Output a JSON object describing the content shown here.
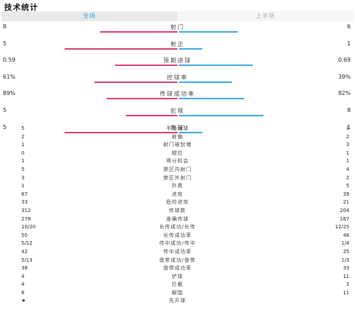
{
  "title": "技术统计",
  "tabs": [
    "全场",
    "上半场"
  ],
  "colors": {
    "home": "#d93a73",
    "away": "#3aa5e6",
    "tab_active": "#2a9de0"
  },
  "bar_stats": [
    {
      "name": "射门",
      "home": "8",
      "away": "6",
      "home_frac": 0.57,
      "away_frac": 0.43
    },
    {
      "name": "射正",
      "home": "5",
      "away": "1",
      "home_frac": 0.83,
      "away_frac": 0.17
    },
    {
      "name": "预期进球",
      "home": "0.59",
      "away": "0.69",
      "home_frac": 0.46,
      "away_frac": 0.54
    },
    {
      "name": "控球率",
      "home": "61%",
      "away": "39%",
      "home_frac": 0.61,
      "away_frac": 0.39
    },
    {
      "name": "传球成功率",
      "home": "89%",
      "away": "82%",
      "home_frac": 0.52,
      "away_frac": 0.48
    },
    {
      "name": "犯规",
      "home": "5",
      "away": "8",
      "home_frac": 0.38,
      "away_frac": 0.62
    },
    {
      "name": "角球",
      "home": "5",
      "away": "1",
      "home_frac": 0.83,
      "away_frac": 0.17
    }
  ],
  "list_stats": [
    {
      "name": "半场角球",
      "home": "5",
      "away": "1"
    },
    {
      "name": "射偏",
      "home": "2",
      "away": "2"
    },
    {
      "name": "射门被封堵",
      "home": "1",
      "away": "3"
    },
    {
      "name": "越位",
      "home": "0",
      "away": "1"
    },
    {
      "name": "得分机会",
      "home": "1",
      "away": "1"
    },
    {
      "name": "禁区内射门",
      "home": "5",
      "away": "4"
    },
    {
      "name": "禁区外射门",
      "home": "3",
      "away": "2"
    },
    {
      "name": "扑救",
      "home": "1",
      "away": "5"
    },
    {
      "name": "进攻",
      "home": "67",
      "away": "39"
    },
    {
      "name": "危险进攻",
      "home": "33",
      "away": "21"
    },
    {
      "name": "传球数",
      "home": "312",
      "away": "204"
    },
    {
      "name": "准确传球",
      "home": "278",
      "away": "167"
    },
    {
      "name": "长传成功/长传",
      "home": "10/20",
      "away": "12/25"
    },
    {
      "name": "长传成功率",
      "home": "50",
      "away": "48"
    },
    {
      "name": "传中成功/传中",
      "home": "5/12",
      "away": "1/4"
    },
    {
      "name": "传中成功率",
      "home": "42",
      "away": "25"
    },
    {
      "name": "盘带成功/盘带",
      "home": "5/13",
      "away": "1/3"
    },
    {
      "name": "盘带成功率",
      "home": "38",
      "away": "33"
    },
    {
      "name": "铲球",
      "home": "4",
      "away": "11"
    },
    {
      "name": "拦截",
      "home": "4",
      "away": "3"
    },
    {
      "name": "解围",
      "home": "6",
      "away": "11"
    },
    {
      "name": "先开球",
      "home": "★",
      "away": ""
    }
  ]
}
